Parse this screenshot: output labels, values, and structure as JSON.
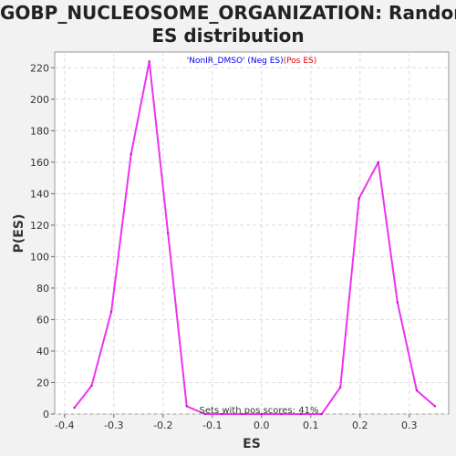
{
  "chart_data": {
    "type": "line",
    "title_lines": [
      "GOBP_NUCLEOSOME_ORGANIZATION: Random",
      "ES distribution"
    ],
    "xlabel": "ES",
    "ylabel": "P(ES)",
    "xlim": [
      -0.42,
      0.38
    ],
    "ylim": [
      0,
      230
    ],
    "xticks": [
      -0.4,
      -0.3,
      -0.2,
      -0.1,
      0.0,
      0.1,
      0.2,
      0.3
    ],
    "xtick_labels": [
      "-0.4",
      "-0.3",
      "-0.2",
      "-0.1",
      "0.0",
      "0.1",
      "0.2",
      "0.3"
    ],
    "yticks": [
      0,
      20,
      40,
      60,
      80,
      100,
      120,
      140,
      160,
      180,
      200,
      220
    ],
    "ytick_labels": [
      "0",
      "20",
      "40",
      "60",
      "80",
      "100",
      "120",
      "140",
      "160",
      "180",
      "200",
      "220"
    ],
    "grid": true,
    "legend": {
      "prefix": "'NonIR_DMSO' (Neg ES)",
      "suffix": "(Pos ES)",
      "prefix_color": "#0000ee",
      "suffix_color": "#ee0000",
      "placement": "top-center"
    },
    "annotation": "Sets with pos scores: 41%",
    "series": [
      {
        "color": "#ee33ee",
        "x": [
          -0.38,
          -0.345,
          -0.305,
          -0.265,
          -0.228,
          -0.19,
          -0.152,
          -0.115,
          -0.08,
          -0.04,
          0.0,
          0.04,
          0.08,
          0.122,
          0.16,
          0.198,
          0.237,
          0.276,
          0.315,
          0.352
        ],
        "y": [
          4,
          18,
          65,
          165,
          224,
          115,
          5,
          0,
          0,
          0,
          0,
          0,
          0,
          0,
          17,
          137,
          160,
          71,
          15,
          5
        ]
      }
    ]
  }
}
